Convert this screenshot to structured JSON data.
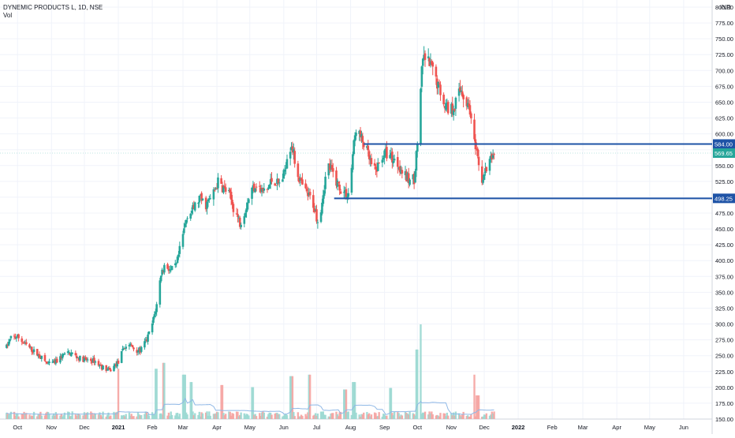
{
  "legend": {
    "symbol": "DYNEMIC PRODUCTS L, 1D, NSE",
    "volume_label": "Vol"
  },
  "currency": "INR",
  "chart_data": {
    "type": "candlestick",
    "y_axis": {
      "min": 150,
      "max": 800,
      "step": 25,
      "ticks": [
        "800.00",
        "775.00",
        "750.00",
        "725.00",
        "700.00",
        "675.00",
        "650.00",
        "625.00",
        "600.00",
        "575.00",
        "550.00",
        "525.00",
        "500.00",
        "475.00",
        "450.00",
        "425.00",
        "400.00",
        "375.00",
        "350.00",
        "325.00",
        "300.00",
        "275.00",
        "250.00",
        "225.00",
        "200.00",
        "175.00",
        "150.00"
      ],
      "position": "right"
    },
    "x_axis": {
      "ticks": [
        {
          "label": "Oct",
          "date": "2020-10-01"
        },
        {
          "label": "Nov",
          "date": "2020-11-01"
        },
        {
          "label": "Dec",
          "date": "2020-12-01"
        },
        {
          "label": "2021",
          "date": "2021-01-01"
        },
        {
          "label": "Feb",
          "date": "2021-02-01"
        },
        {
          "label": "Mar",
          "date": "2021-03-01"
        },
        {
          "label": "Apr",
          "date": "2021-04-01"
        },
        {
          "label": "May",
          "date": "2021-05-01"
        },
        {
          "label": "Jun",
          "date": "2021-06-01"
        },
        {
          "label": "Jul",
          "date": "2021-07-01"
        },
        {
          "label": "Aug",
          "date": "2021-08-01"
        },
        {
          "label": "Sep",
          "date": "2021-09-01"
        },
        {
          "label": "Oct",
          "date": "2021-10-01"
        },
        {
          "label": "Nov",
          "date": "2021-11-01"
        },
        {
          "label": "Dec",
          "date": "2021-12-01"
        },
        {
          "label": "2022",
          "date": "2022-01-01"
        },
        {
          "label": "Feb",
          "date": "2022-02-01"
        },
        {
          "label": "Mar",
          "date": "2022-03-01"
        },
        {
          "label": "Apr",
          "date": "2022-04-01"
        },
        {
          "label": "May",
          "date": "2022-05-01"
        },
        {
          "label": "Jun",
          "date": "2022-06-01"
        }
      ]
    },
    "price_path": [
      [
        "2020-09-20",
        260
      ],
      [
        "2020-09-25",
        278
      ],
      [
        "2020-10-01",
        280
      ],
      [
        "2020-10-08",
        268
      ],
      [
        "2020-10-15",
        258
      ],
      [
        "2020-10-22",
        248
      ],
      [
        "2020-10-29",
        236
      ],
      [
        "2020-11-05",
        240
      ],
      [
        "2020-11-12",
        252
      ],
      [
        "2020-11-19",
        254
      ],
      [
        "2020-11-26",
        246
      ],
      [
        "2020-12-03",
        243
      ],
      [
        "2020-12-10",
        242
      ],
      [
        "2020-12-17",
        232
      ],
      [
        "2020-12-24",
        226
      ],
      [
        "2021-01-01",
        240
      ],
      [
        "2021-01-06",
        262
      ],
      [
        "2021-01-11",
        268
      ],
      [
        "2021-01-16",
        260
      ],
      [
        "2021-01-21",
        258
      ],
      [
        "2021-01-27",
        275
      ],
      [
        "2021-02-01",
        300
      ],
      [
        "2021-02-05",
        330
      ],
      [
        "2021-02-09",
        380
      ],
      [
        "2021-02-13",
        395
      ],
      [
        "2021-02-18",
        383
      ],
      [
        "2021-02-23",
        392
      ],
      [
        "2021-03-01",
        440
      ],
      [
        "2021-03-05",
        474
      ],
      [
        "2021-03-10",
        480
      ],
      [
        "2021-03-16",
        498
      ],
      [
        "2021-03-22",
        488
      ],
      [
        "2021-03-28",
        502
      ],
      [
        "2021-04-02",
        524
      ],
      [
        "2021-04-07",
        514
      ],
      [
        "2021-04-12",
        505
      ],
      [
        "2021-04-17",
        480
      ],
      [
        "2021-04-22",
        460
      ],
      [
        "2021-04-27",
        482
      ],
      [
        "2021-05-02",
        510
      ],
      [
        "2021-05-07",
        522
      ],
      [
        "2021-05-12",
        508
      ],
      [
        "2021-05-17",
        512
      ],
      [
        "2021-05-22",
        530
      ],
      [
        "2021-05-27",
        520
      ],
      [
        "2021-06-01",
        534
      ],
      [
        "2021-06-04",
        566
      ],
      [
        "2021-06-08",
        585
      ],
      [
        "2021-06-12",
        548
      ],
      [
        "2021-06-17",
        520
      ],
      [
        "2021-06-22",
        505
      ],
      [
        "2021-06-27",
        495
      ],
      [
        "2021-07-01",
        470
      ],
      [
        "2021-07-03",
        460
      ],
      [
        "2021-07-07",
        508
      ],
      [
        "2021-07-11",
        552
      ],
      [
        "2021-07-15",
        540
      ],
      [
        "2021-07-20",
        522
      ],
      [
        "2021-07-25",
        508
      ],
      [
        "2021-07-31",
        505
      ],
      [
        "2021-08-03",
        568
      ],
      [
        "2021-08-06",
        610
      ],
      [
        "2021-08-10",
        594
      ],
      [
        "2021-08-14",
        582
      ],
      [
        "2021-08-18",
        560
      ],
      [
        "2021-08-22",
        538
      ],
      [
        "2021-08-26",
        548
      ],
      [
        "2021-08-30",
        566
      ],
      [
        "2021-09-04",
        570
      ],
      [
        "2021-09-09",
        560
      ],
      [
        "2021-09-14",
        552
      ],
      [
        "2021-09-19",
        534
      ],
      [
        "2021-09-24",
        526
      ],
      [
        "2021-09-28",
        530
      ],
      [
        "2021-10-01",
        585
      ],
      [
        "2021-10-03",
        652
      ],
      [
        "2021-10-06",
        716
      ],
      [
        "2021-10-09",
        720
      ],
      [
        "2021-10-13",
        705
      ],
      [
        "2021-10-17",
        692
      ],
      [
        "2021-10-21",
        672
      ],
      [
        "2021-10-25",
        652
      ],
      [
        "2021-10-29",
        640
      ],
      [
        "2021-11-02",
        640
      ],
      [
        "2021-11-06",
        655
      ],
      [
        "2021-11-10",
        672
      ],
      [
        "2021-11-14",
        650
      ],
      [
        "2021-11-18",
        640
      ],
      [
        "2021-11-20",
        600
      ],
      [
        "2021-11-23",
        575
      ],
      [
        "2021-11-26",
        548
      ],
      [
        "2021-11-29",
        528
      ],
      [
        "2021-12-02",
        540
      ],
      [
        "2021-12-06",
        555
      ],
      [
        "2021-12-10",
        570
      ]
    ],
    "volume": {
      "max": 320,
      "spikes": [
        [
          "2021-01-02",
          170
        ],
        [
          "2021-02-05",
          170
        ],
        [
          "2021-02-12",
          190
        ],
        [
          "2021-03-02",
          150
        ],
        [
          "2021-03-08",
          125
        ],
        [
          "2021-04-05",
          115
        ],
        [
          "2021-05-03",
          108
        ],
        [
          "2021-06-08",
          145
        ],
        [
          "2021-06-25",
          150
        ],
        [
          "2021-07-27",
          100
        ],
        [
          "2021-08-04",
          125
        ],
        [
          "2021-09-06",
          105
        ],
        [
          "2021-10-01",
          235
        ],
        [
          "2021-10-03",
          320
        ],
        [
          "2021-11-21",
          150
        ],
        [
          "2021-11-25",
          80
        ]
      ]
    },
    "horizontal_lines": [
      {
        "price": 584.0,
        "label": "584.00",
        "start": "2021-08-13",
        "color": "#1e53a6"
      },
      {
        "price": 498.25,
        "label": "498.25",
        "start": "2021-07-17",
        "color": "#1e53a6"
      }
    ],
    "last_price": {
      "price": 569.65,
      "label": "569.65",
      "color": "#26a69a"
    },
    "colors": {
      "up": "#26a69a",
      "down": "#ef5350",
      "up_volume": "#9ad8d1",
      "down_volume": "#f5a3a1",
      "volume_ma": "#8fb8e6"
    }
  }
}
